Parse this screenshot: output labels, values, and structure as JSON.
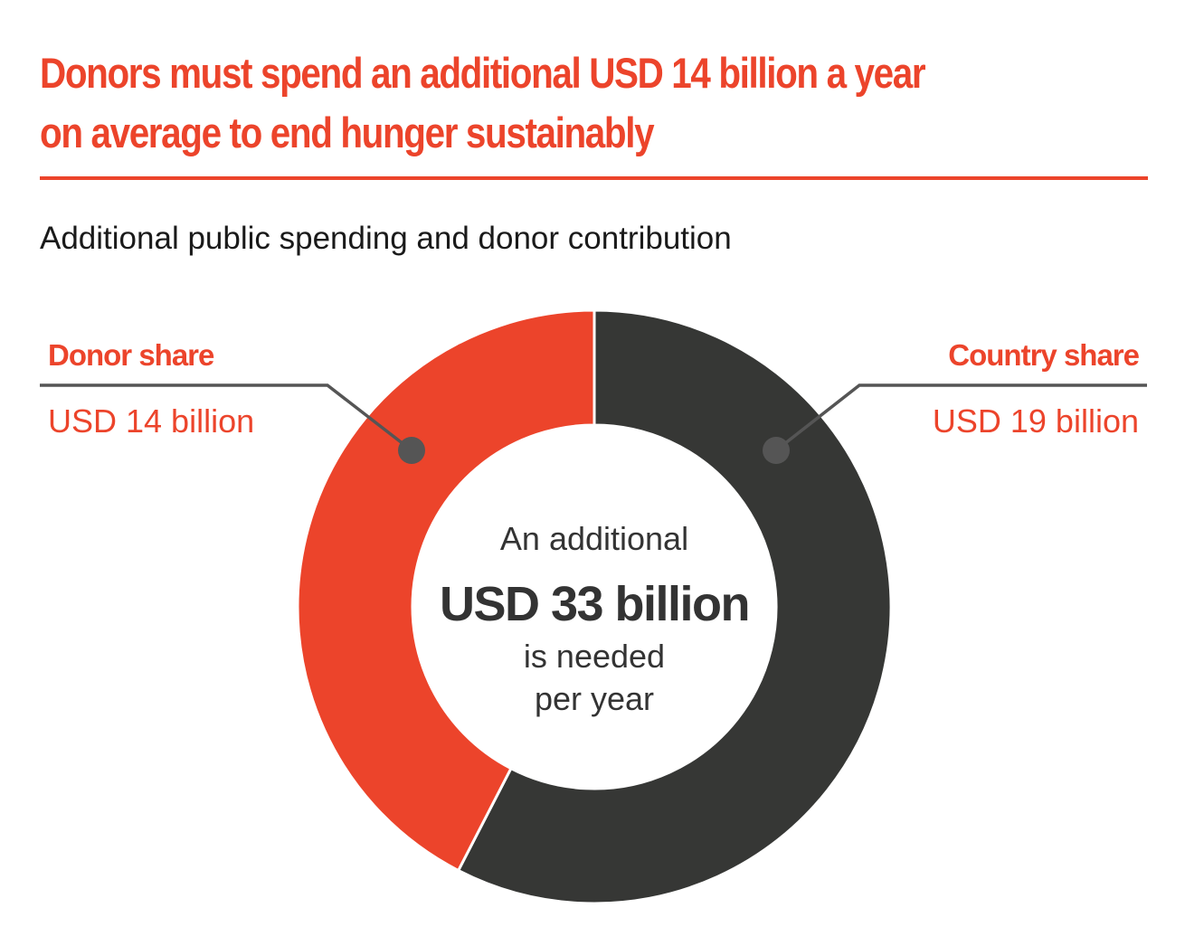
{
  "colors": {
    "accent": "#ec442b",
    "dark": "#363735",
    "connector": "#555555",
    "rule": "#ec442b"
  },
  "headline": {
    "line1": "Donors must spend an additional USD 14 billion a year",
    "line2": "on average to end hunger sustainably"
  },
  "center": {
    "line1": "An additional",
    "line2": "USD 33 billion",
    "line3": "is needed",
    "line4": "per year"
  },
  "chart_data": {
    "type": "pie",
    "title": "Additional public spending and donor contribution",
    "unit": "USD billion",
    "total": 33,
    "slices": [
      {
        "name": "Country share",
        "label": "USD 19 billion",
        "value": 19,
        "color": "#363735"
      },
      {
        "name": "Donor share",
        "label": "USD 14 billion",
        "value": 14,
        "color": "#ec442b"
      }
    ]
  }
}
